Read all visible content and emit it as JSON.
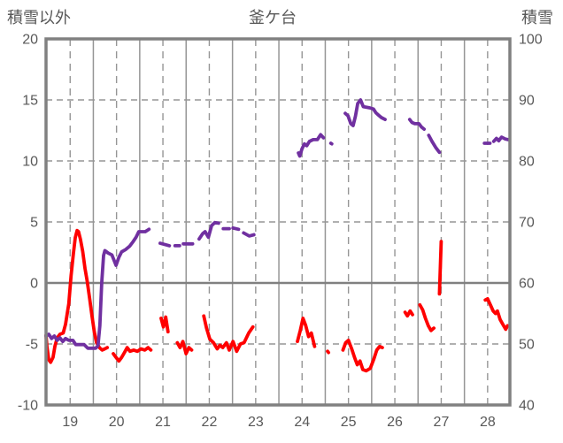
{
  "header": {
    "left_axis_title": "積雪以外",
    "title": "釜ケ台",
    "right_axis_title": "積雪"
  },
  "chart_data": {
    "type": "line",
    "title": "釜ケ台",
    "legend": "none",
    "grid": {
      "border_color": "#808080",
      "line_color": "#969696",
      "zero_line_color": "#808080",
      "vertical_solid_at_day_boundaries": true,
      "vertical_dashed_at_day_centers": true,
      "horizontal_dashed": true
    },
    "x_axis": {
      "ticks": [
        19,
        20,
        21,
        22,
        23,
        24,
        25,
        26,
        27,
        28
      ],
      "range": [
        18.48,
        28.48
      ],
      "boundaries": [
        19.5,
        20.5,
        21.5,
        22.5,
        23.5,
        24.5,
        25.5,
        26.5,
        27.5
      ]
    },
    "left_axis": {
      "label": "積雪以外",
      "ticks": [
        20,
        15,
        10,
        5,
        0,
        -5,
        -10
      ],
      "grid_ticks": [
        15,
        10,
        5,
        -5
      ],
      "zero_line": 0,
      "range": [
        -10,
        20
      ]
    },
    "right_axis": {
      "label": "積雪",
      "ticks": [
        100,
        90,
        80,
        70,
        60,
        50,
        40
      ],
      "range": [
        40,
        100
      ]
    },
    "series": [
      {
        "name": "積雪以外",
        "axis": "left",
        "color": "#ff0000",
        "width": 3.8,
        "points": [
          [
            18.48,
            -4.3
          ],
          [
            18.5,
            -5.2
          ],
          [
            18.54,
            -6.3
          ],
          [
            18.58,
            -6.5
          ],
          [
            18.63,
            -6.1
          ],
          [
            18.67,
            -5.2
          ],
          [
            18.72,
            -4.5
          ],
          [
            18.78,
            -4.2
          ],
          [
            18.85,
            -4.1
          ],
          [
            18.9,
            -3.4
          ],
          [
            18.97,
            -1.7
          ],
          [
            19.02,
            0.6
          ],
          [
            19.07,
            2.4
          ],
          [
            19.11,
            3.7
          ],
          [
            19.15,
            4.3
          ],
          [
            19.18,
            4.2
          ],
          [
            19.22,
            3.6
          ],
          [
            19.27,
            2.6
          ],
          [
            19.32,
            1.2
          ],
          [
            19.37,
            0.1
          ],
          [
            19.42,
            -1.3
          ],
          [
            19.47,
            -2.7
          ],
          [
            19.52,
            -4.0
          ],
          [
            19.57,
            -4.9
          ],
          [
            19.63,
            -5.3
          ],
          [
            19.69,
            -5.5
          ],
          [
            19.75,
            -5.4
          ],
          [
            19.8,
            -5.3
          ],
          null,
          [
            19.93,
            -5.8
          ],
          [
            19.99,
            -6.1
          ],
          [
            20.05,
            -6.4
          ],
          [
            20.11,
            -6.1
          ],
          [
            20.17,
            -5.7
          ],
          [
            20.23,
            -5.3
          ],
          [
            20.29,
            -5.6
          ],
          [
            20.37,
            -5.5
          ],
          [
            20.45,
            -5.6
          ],
          [
            20.53,
            -5.4
          ],
          [
            20.61,
            -5.5
          ],
          [
            20.68,
            -5.3
          ],
          [
            20.74,
            -5.5
          ],
          null,
          [
            20.96,
            -2.9
          ],
          [
            21.01,
            -3.6
          ],
          [
            21.06,
            -2.8
          ],
          [
            21.11,
            -4.0
          ],
          null,
          [
            21.31,
            -4.9
          ],
          [
            21.37,
            -5.3
          ],
          [
            21.43,
            -4.8
          ],
          [
            21.5,
            -5.8
          ],
          [
            21.56,
            -5.3
          ],
          [
            21.62,
            -5.5
          ],
          null,
          [
            21.88,
            -2.7
          ],
          [
            21.94,
            -3.7
          ],
          [
            22.01,
            -4.6
          ],
          [
            22.09,
            -4.9
          ],
          [
            22.17,
            -5.4
          ],
          [
            22.23,
            -5.1
          ],
          [
            22.29,
            -5.3
          ],
          [
            22.37,
            -4.9
          ],
          [
            22.43,
            -5.5
          ],
          [
            22.51,
            -4.8
          ],
          [
            22.59,
            -5.6
          ],
          [
            22.67,
            -5.0
          ],
          [
            22.75,
            -4.9
          ],
          [
            22.85,
            -4.1
          ],
          [
            22.94,
            -3.6
          ],
          null,
          [
            23.9,
            -4.8
          ],
          [
            23.96,
            -3.9
          ],
          [
            24.02,
            -2.9
          ],
          [
            24.08,
            -3.5
          ],
          [
            24.14,
            -4.4
          ],
          [
            24.2,
            -4.1
          ],
          [
            24.27,
            -5.2
          ],
          null,
          [
            24.55,
            -5.6
          ],
          [
            24.57,
            -5.7
          ],
          null,
          [
            24.88,
            -5.5
          ],
          [
            24.94,
            -4.9
          ],
          [
            25.0,
            -4.7
          ],
          [
            25.07,
            -5.4
          ],
          [
            25.13,
            -6.1
          ],
          [
            25.19,
            -6.7
          ],
          [
            25.25,
            -6.4
          ],
          [
            25.31,
            -7.1
          ],
          [
            25.38,
            -7.2
          ],
          [
            25.47,
            -7.0
          ],
          [
            25.55,
            -6.2
          ],
          [
            25.61,
            -5.5
          ],
          [
            25.67,
            -5.2
          ],
          [
            25.73,
            -5.3
          ],
          null,
          [
            26.22,
            -2.4
          ],
          [
            26.27,
            -2.7
          ],
          [
            26.33,
            -2.3
          ],
          [
            26.38,
            -2.6
          ],
          null,
          [
            26.54,
            -1.8
          ],
          [
            26.6,
            -2.2
          ],
          [
            26.66,
            -2.9
          ],
          [
            26.72,
            -3.5
          ],
          [
            26.78,
            -3.9
          ],
          [
            26.84,
            -3.7
          ],
          null,
          [
            26.96,
            -0.9
          ],
          [
            27.0,
            3.4
          ],
          null,
          [
            27.95,
            -1.4
          ],
          [
            28.0,
            -1.3
          ],
          [
            28.06,
            -1.8
          ],
          [
            28.12,
            -2.3
          ],
          [
            28.17,
            -2.5
          ],
          [
            28.21,
            -2.3
          ],
          [
            28.27,
            -3.0
          ],
          [
            28.33,
            -3.4
          ],
          [
            28.39,
            -3.8
          ],
          [
            28.43,
            -3.5
          ]
        ]
      },
      {
        "name": "積雪",
        "axis": "right",
        "color": "#7030a0",
        "width": 3.8,
        "points": [
          [
            18.48,
            51.3
          ],
          [
            18.54,
            51.6
          ],
          [
            18.6,
            50.9
          ],
          [
            18.66,
            51.3
          ],
          [
            18.72,
            50.6
          ],
          [
            18.78,
            51.0
          ],
          [
            18.84,
            50.4
          ],
          [
            18.9,
            50.9
          ],
          [
            18.97,
            50.6
          ],
          [
            19.06,
            50.6
          ],
          [
            19.12,
            49.9
          ],
          [
            19.3,
            49.9
          ],
          [
            19.38,
            49.3
          ],
          [
            19.55,
            49.3
          ],
          [
            19.6,
            49.7
          ],
          [
            19.64,
            53.0
          ],
          [
            19.68,
            60.0
          ],
          [
            19.72,
            64.5
          ],
          [
            19.75,
            65.3
          ],
          [
            19.82,
            64.9
          ],
          [
            19.9,
            64.6
          ],
          [
            19.99,
            62.9
          ],
          [
            20.05,
            64.2
          ],
          [
            20.11,
            65.1
          ],
          [
            20.2,
            65.5
          ],
          [
            20.28,
            66.0
          ],
          [
            20.36,
            66.8
          ],
          [
            20.42,
            67.5
          ],
          [
            20.48,
            68.4
          ],
          [
            20.62,
            68.4
          ],
          [
            20.7,
            68.8
          ],
          null,
          [
            20.94,
            66.5
          ],
          [
            21.14,
            66.1
          ],
          null,
          [
            21.26,
            66.1
          ],
          [
            21.36,
            66.1
          ],
          null,
          [
            21.44,
            66.4
          ],
          [
            21.64,
            66.4
          ],
          null,
          [
            21.78,
            67.2
          ],
          [
            21.86,
            68.1
          ],
          [
            21.91,
            68.4
          ],
          [
            21.98,
            67.5
          ],
          [
            22.05,
            69.4
          ],
          [
            22.12,
            69.9
          ],
          [
            22.2,
            69.8
          ],
          null,
          [
            22.3,
            68.9
          ],
          [
            22.43,
            68.9
          ],
          null,
          [
            22.51,
            69.0
          ],
          [
            22.63,
            68.8
          ],
          null,
          [
            22.74,
            68.2
          ],
          [
            22.86,
            67.7
          ],
          [
            22.96,
            67.9
          ],
          null,
          [
            23.92,
            81.3
          ],
          [
            23.95,
            80.8
          ],
          [
            24.0,
            82.0
          ],
          [
            24.05,
            82.8
          ],
          [
            24.1,
            82.5
          ],
          [
            24.16,
            83.2
          ],
          [
            24.24,
            83.5
          ],
          [
            24.33,
            83.5
          ],
          [
            24.4,
            84.3
          ],
          [
            24.46,
            83.8
          ],
          null,
          [
            24.62,
            82.9
          ],
          [
            24.64,
            82.8
          ],
          null,
          [
            24.93,
            87.8
          ],
          [
            24.99,
            87.4
          ],
          [
            25.05,
            86.1
          ],
          [
            25.1,
            85.8
          ],
          [
            25.15,
            87.3
          ],
          [
            25.2,
            89.4
          ],
          [
            25.26,
            90.0
          ],
          [
            25.32,
            88.9
          ],
          [
            25.46,
            88.7
          ],
          [
            25.54,
            88.5
          ],
          [
            25.59,
            87.9
          ],
          [
            25.65,
            87.5
          ],
          [
            25.71,
            87.1
          ],
          [
            25.79,
            86.8
          ],
          null,
          [
            26.32,
            86.8
          ],
          [
            26.37,
            86.3
          ],
          [
            26.43,
            86.1
          ],
          [
            26.52,
            86.1
          ],
          [
            26.57,
            85.6
          ],
          [
            26.63,
            85.2
          ],
          null,
          [
            26.73,
            84.2
          ],
          [
            26.8,
            83.2
          ],
          [
            26.88,
            82.2
          ],
          [
            26.96,
            81.4
          ],
          null,
          [
            27.93,
            82.9
          ],
          [
            28.05,
            82.9
          ],
          null,
          [
            28.13,
            83.2
          ],
          [
            28.19,
            83.7
          ],
          [
            28.24,
            83.3
          ],
          [
            28.3,
            83.9
          ],
          [
            28.38,
            83.6
          ],
          [
            28.44,
            83.5
          ]
        ]
      }
    ]
  }
}
